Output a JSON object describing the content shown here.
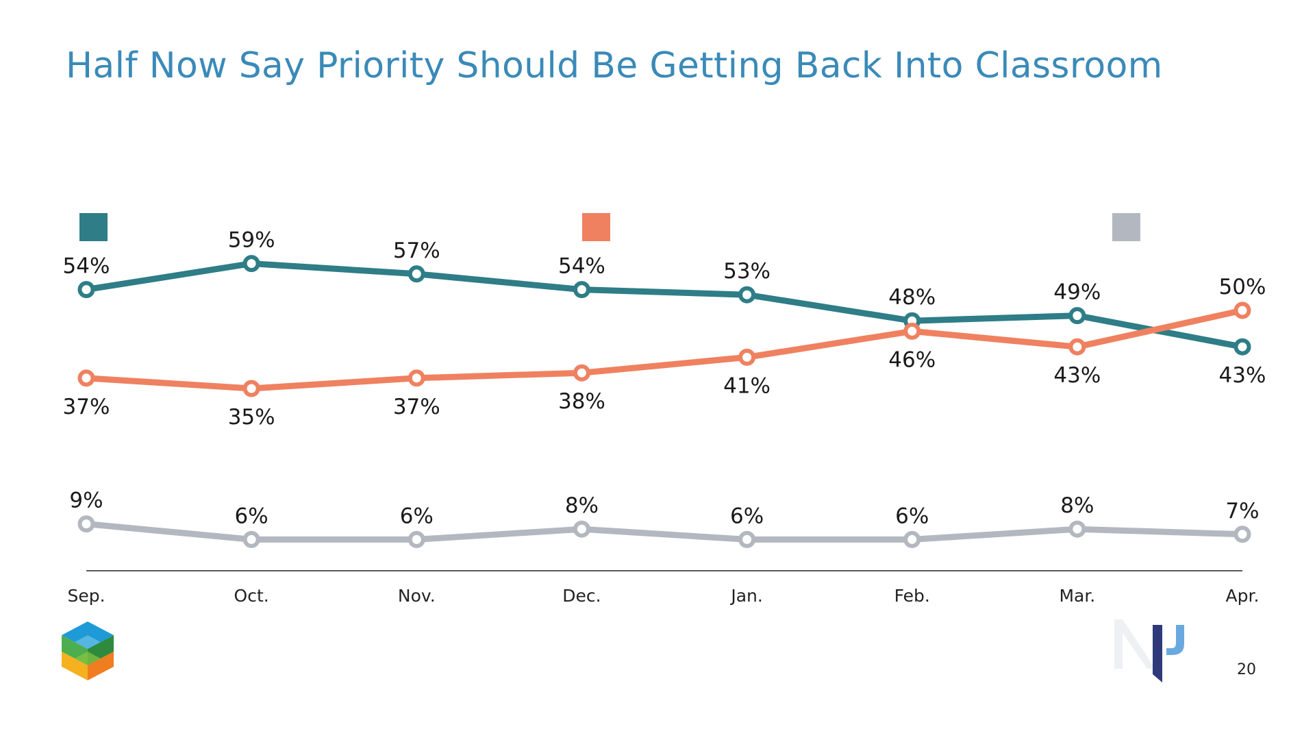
{
  "page": {
    "title": "Half Now Say Priority Should Be Getting Back Into Classroom",
    "page_number": "20"
  },
  "logos": {
    "left": "cube-logo-icon",
    "right": "np-logo-icon"
  },
  "chart_data": {
    "type": "line",
    "categories": [
      "Sep.",
      "Oct.",
      "Nov.",
      "Dec.",
      "Jan.",
      "Feb.",
      "Mar.",
      "Apr."
    ],
    "ylim": [
      0,
      100
    ],
    "grid": false,
    "legend": "top",
    "series": [
      {
        "color": "#2e7d87",
        "values": [
          54,
          59,
          57,
          54,
          53,
          48,
          49,
          43
        ],
        "labels": [
          "54%",
          "59%",
          "57%",
          "54%",
          "53%",
          "48%",
          "49%",
          "43%"
        ],
        "label_pos": [
          "above",
          "above",
          "above",
          "above",
          "above",
          "above",
          "above",
          "below"
        ]
      },
      {
        "color": "#ef8160",
        "values": [
          37,
          35,
          37,
          38,
          41,
          46,
          43,
          50
        ],
        "labels": [
          "37%",
          "35%",
          "37%",
          "38%",
          "41%",
          "46%",
          "43%",
          "50%"
        ],
        "label_pos": [
          "below",
          "below",
          "below",
          "below",
          "below",
          "below",
          "below",
          "above"
        ]
      },
      {
        "color": "#b3b8c0",
        "values": [
          9,
          6,
          6,
          8,
          6,
          6,
          8,
          7
        ],
        "labels": [
          "9%",
          "6%",
          "6%",
          "8%",
          "6%",
          "6%",
          "8%",
          "7%"
        ],
        "label_pos": [
          "above",
          "above",
          "above",
          "above",
          "above",
          "above",
          "above",
          "above"
        ]
      }
    ]
  }
}
